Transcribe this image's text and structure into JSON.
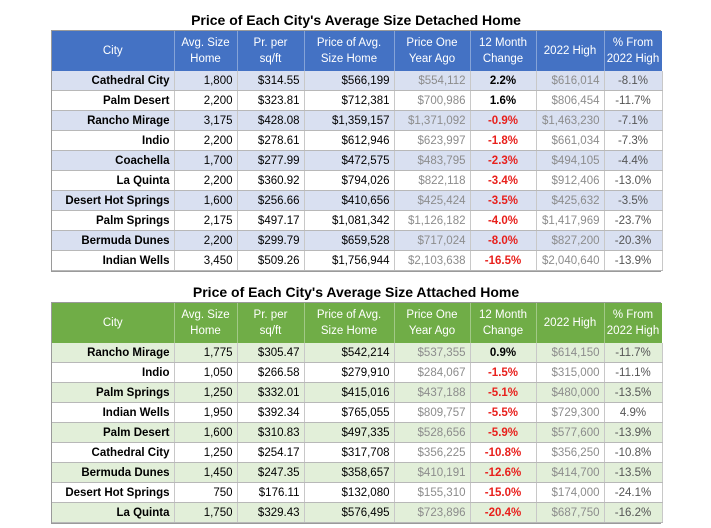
{
  "detached": {
    "title": "Price of Each City's Average Size Detached Home",
    "columns": [
      "City",
      "Avg. Size\nHome",
      "Pr. per\nsq/ft",
      "Price of Avg.\nSize Home",
      "Price One\nYear Ago",
      "12 Month\nChange",
      "2022 High",
      "% From\n2022 High"
    ],
    "rows": [
      [
        "Cathedral City",
        "1,800",
        "$314.55",
        "$566,199",
        "$554,112",
        "2.2%",
        "$616,014",
        "-8.1%"
      ],
      [
        "Palm Desert",
        "2,200",
        "$323.81",
        "$712,381",
        "$700,986",
        "1.6%",
        "$806,454",
        "-11.7%"
      ],
      [
        "Rancho Mirage",
        "3,175",
        "$428.08",
        "$1,359,157",
        "$1,371,092",
        "-0.9%",
        "$1,463,230",
        "-7.1%"
      ],
      [
        "Indio",
        "2,200",
        "$278.61",
        "$612,946",
        "$623,997",
        "-1.8%",
        "$661,034",
        "-7.3%"
      ],
      [
        "Coachella",
        "1,700",
        "$277.99",
        "$472,575",
        "$483,795",
        "-2.3%",
        "$494,105",
        "-4.4%"
      ],
      [
        "La Quinta",
        "2,200",
        "$360.92",
        "$794,026",
        "$822,118",
        "-3.4%",
        "$912,406",
        "-13.0%"
      ],
      [
        "Desert Hot Springs",
        "1,600",
        "$256.66",
        "$410,656",
        "$425,424",
        "-3.5%",
        "$425,632",
        "-3.5%"
      ],
      [
        "Palm Springs",
        "2,175",
        "$497.17",
        "$1,081,342",
        "$1,126,182",
        "-4.0%",
        "$1,417,969",
        "-23.7%"
      ],
      [
        "Bermuda Dunes",
        "2,200",
        "$299.79",
        "$659,528",
        "$717,024",
        "-8.0%",
        "$827,200",
        "-20.3%"
      ],
      [
        "Indian Wells",
        "3,450",
        "$509.26",
        "$1,756,944",
        "$2,103,638",
        "-16.5%",
        "$2,040,640",
        "-13.9%"
      ]
    ]
  },
  "attached": {
    "title": "Price of Each City's Average Size Attached Home",
    "columns": [
      "City",
      "Avg. Size\nHome",
      "Pr. per\nsq/ft",
      "Price of Avg.\nSize Home",
      "Price One\nYear Ago",
      "12 Month\nChange",
      "2022 High",
      "% From\n2022 High"
    ],
    "rows": [
      [
        "Rancho Mirage",
        "1,775",
        "$305.47",
        "$542,214",
        "$537,355",
        "0.9%",
        "$614,150",
        "-11.7%"
      ],
      [
        "Indio",
        "1,050",
        "$266.58",
        "$279,910",
        "$284,067",
        "-1.5%",
        "$315,000",
        "-11.1%"
      ],
      [
        "Palm Springs",
        "1,250",
        "$332.01",
        "$415,016",
        "$437,188",
        "-5.1%",
        "$480,000",
        "-13.5%"
      ],
      [
        "Indian Wells",
        "1,950",
        "$392.34",
        "$765,055",
        "$809,757",
        "-5.5%",
        "$729,300",
        "4.9%"
      ],
      [
        "Palm Desert",
        "1,600",
        "$310.83",
        "$497,335",
        "$528,656",
        "-5.9%",
        "$577,600",
        "-13.9%"
      ],
      [
        "Cathedral City",
        "1,250",
        "$254.17",
        "$317,708",
        "$356,225",
        "-10.8%",
        "$356,250",
        "-10.8%"
      ],
      [
        "Bermuda Dunes",
        "1,450",
        "$247.35",
        "$358,657",
        "$410,191",
        "-12.6%",
        "$414,700",
        "-13.5%"
      ],
      [
        "Desert Hot Springs",
        "750",
        "$176.11",
        "$132,080",
        "$155,310",
        "-15.0%",
        "$174,000",
        "-24.1%"
      ],
      [
        "La Quinta",
        "1,750",
        "$329.43",
        "$576,495",
        "$723,896",
        "-20.4%",
        "$687,750",
        "-16.2%"
      ]
    ]
  }
}
